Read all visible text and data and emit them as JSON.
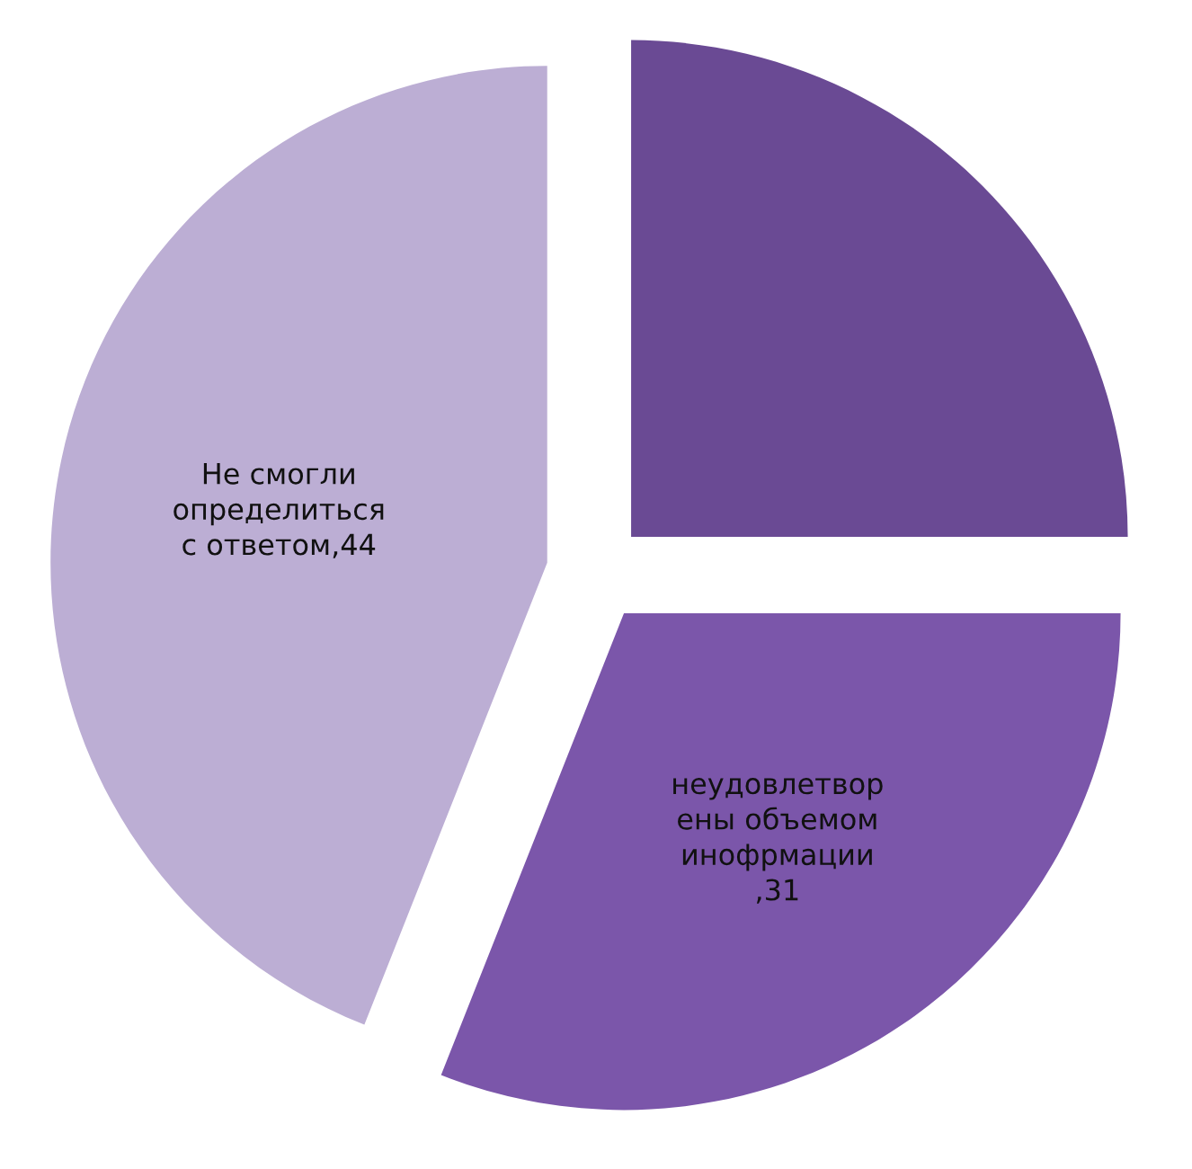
{
  "chart_data": {
    "type": "pie",
    "categories": [
      null,
      "неудовлетвор\nены объемом\nинофрмации\n,31",
      "Не смогли\nопределиться\nс ответом,44"
    ],
    "values": [
      25,
      31,
      44
    ],
    "colors": [
      "#6a4a94",
      "#7b56aa",
      "#bcaed4"
    ]
  }
}
